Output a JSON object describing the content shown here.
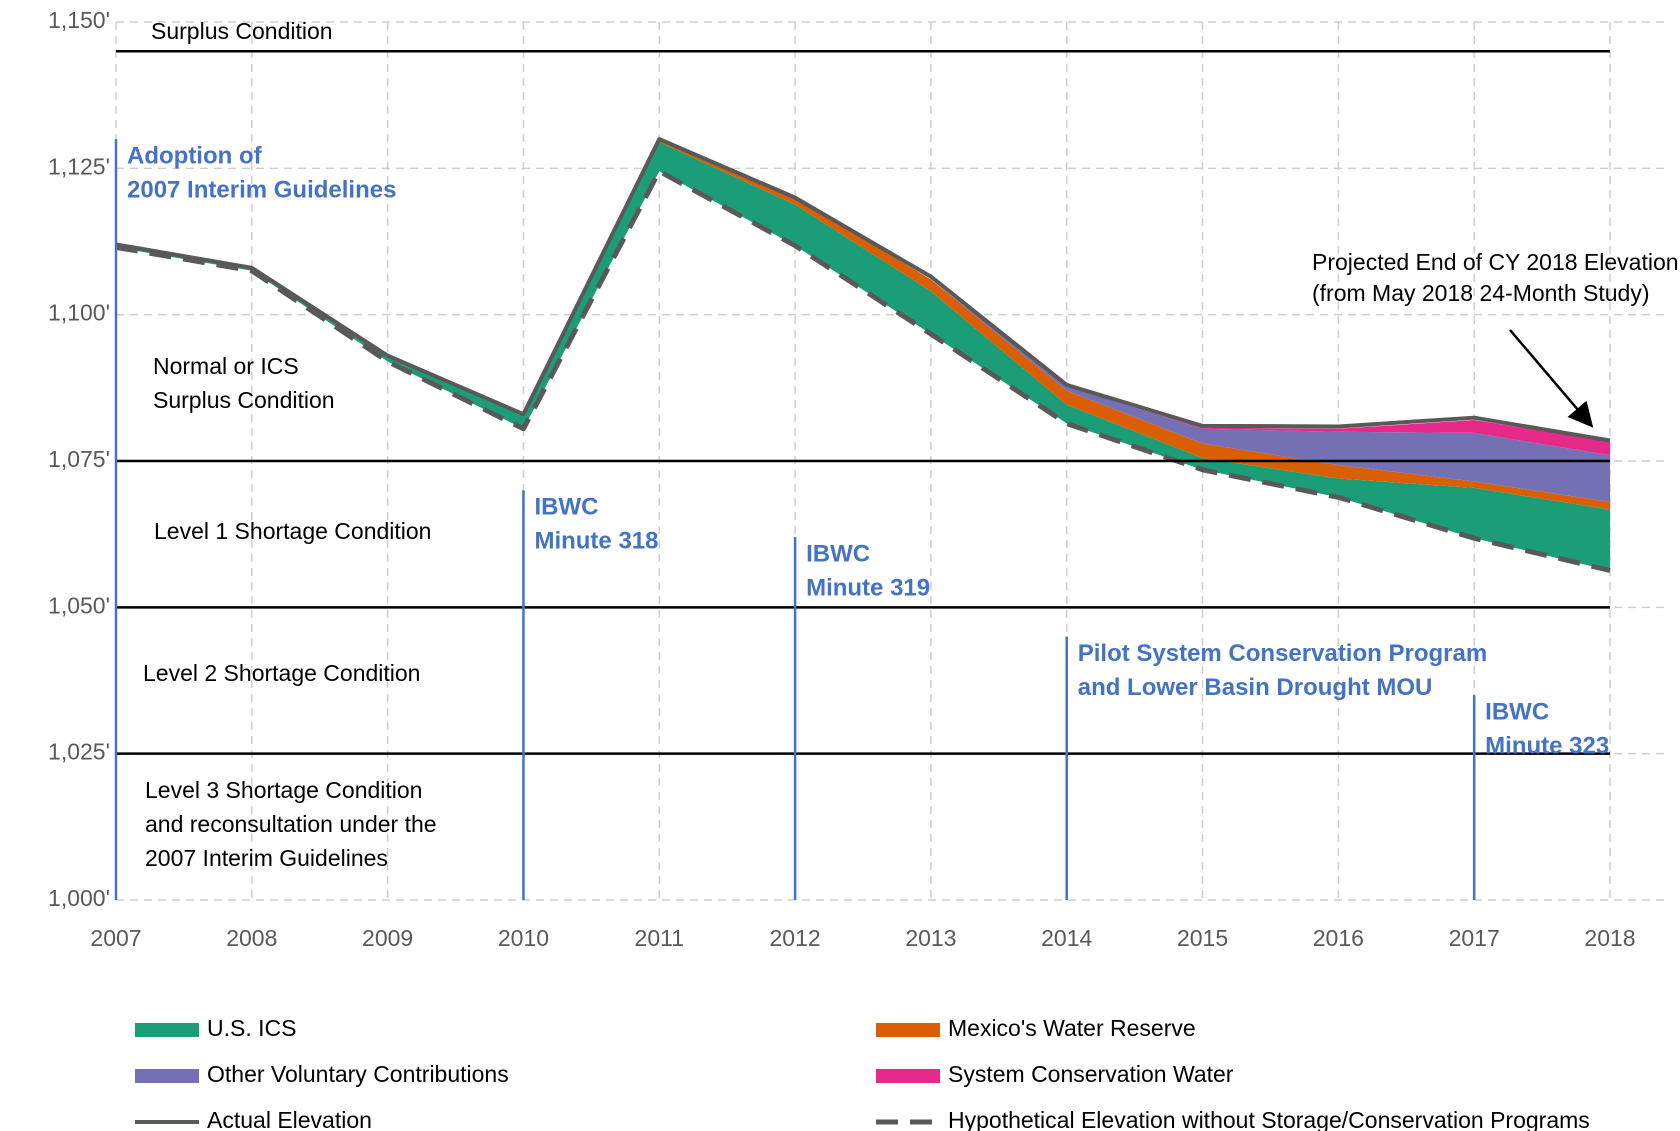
{
  "chart_data": {
    "type": "area",
    "x": [
      2007,
      2008,
      2009,
      2010,
      2011,
      2012,
      2013,
      2014,
      2015,
      2016,
      2017,
      2018
    ],
    "xlim": [
      2007,
      2018
    ],
    "xticks": [
      2007,
      2008,
      2009,
      2010,
      2011,
      2012,
      2013,
      2014,
      2015,
      2016,
      2017,
      2018
    ],
    "ylim": [
      1000,
      1150
    ],
    "yticks": [
      {
        "value": 1000,
        "label": "1,000'"
      },
      {
        "value": 1025,
        "label": "1,025'"
      },
      {
        "value": 1050,
        "label": "1,050'"
      },
      {
        "value": 1075,
        "label": "1,075'"
      },
      {
        "value": 1100,
        "label": "1,100'"
      },
      {
        "value": 1125,
        "label": "1,125'"
      },
      {
        "value": 1150,
        "label": "1,150'"
      }
    ],
    "grid": true,
    "series": [
      {
        "name": "U.S. ICS",
        "color": "#1b9e77",
        "stacked": true,
        "values": [
          0.5,
          0.5,
          1,
          2.5,
          5,
          7,
          7.3,
          3.2,
          2,
          3.2,
          8.6,
          10.4
        ]
      },
      {
        "name": "Mexico's Water Reserve",
        "color": "#d95f02",
        "stacked": true,
        "values": [
          0,
          0,
          0,
          0,
          0.5,
          1.2,
          2,
          2.4,
          2.5,
          2.3,
          1.1,
          1.3
        ]
      },
      {
        "name": "Other Voluntary Contributions",
        "color": "#7570b3",
        "stacked": true,
        "values": [
          0,
          0,
          0,
          0,
          0,
          0,
          0,
          0.8,
          2.5,
          5.7,
          8.3,
          8
        ]
      },
      {
        "name": "System Conservation Water",
        "color": "#e7298a",
        "stacked": true,
        "values": [
          0,
          0,
          0,
          0,
          0,
          0,
          0,
          0,
          0.2,
          0.5,
          2.2,
          2.3
        ]
      },
      {
        "name": "Actual Elevation",
        "color": "#595959",
        "line": "solid",
        "values": [
          1112,
          1108,
          1093,
          1083,
          1130,
          1120,
          1106.5,
          1088,
          1081,
          1080.9,
          1082.4,
          1078.5
        ]
      },
      {
        "name": "Hypothetical Elevation without Storage/Conservation Programs",
        "color": "#595959",
        "line": "dashed",
        "stack_base": true,
        "values": [
          1111.5,
          1107.5,
          1092,
          1080.5,
          1124.5,
          1111.8,
          1096.7,
          1081.4,
          1073.5,
          1068.8,
          1061.8,
          1056.3
        ]
      }
    ],
    "thresholds": [
      1145,
      1075,
      1050,
      1025
    ],
    "zones": [
      {
        "lines": [
          "Surplus Condition"
        ]
      },
      {
        "lines": [
          "Normal or ICS",
          "Surplus Condition"
        ]
      },
      {
        "lines": [
          "Level 1 Shortage Condition"
        ]
      },
      {
        "lines": [
          "Level 2 Shortage Condition"
        ]
      },
      {
        "lines": [
          "Level 3 Shortage Condition",
          "and reconsultation under the",
          "2007 Interim Guidelines"
        ]
      }
    ],
    "events": [
      {
        "x": 2007,
        "y": 1130,
        "lines": [
          "Adoption of",
          "2007 Interim Guidelines"
        ]
      },
      {
        "x": 2010,
        "y": 1070,
        "lines": [
          "IBWC",
          "Minute 318"
        ]
      },
      {
        "x": 2012,
        "y": 1062,
        "lines": [
          "IBWC",
          "Minute 319"
        ]
      },
      {
        "x": 2014,
        "y": 1045,
        "lines": [
          "Pilot System Conservation Program",
          "and Lower Basin Drought MOU"
        ]
      },
      {
        "x": 2017,
        "y": 1035,
        "lines": [
          "IBWC",
          "Minute 323"
        ]
      }
    ],
    "annotation": {
      "lines": [
        "Projected End of CY 2018 Elevation",
        "(from May 2018 24-Month Study)"
      ]
    }
  }
}
